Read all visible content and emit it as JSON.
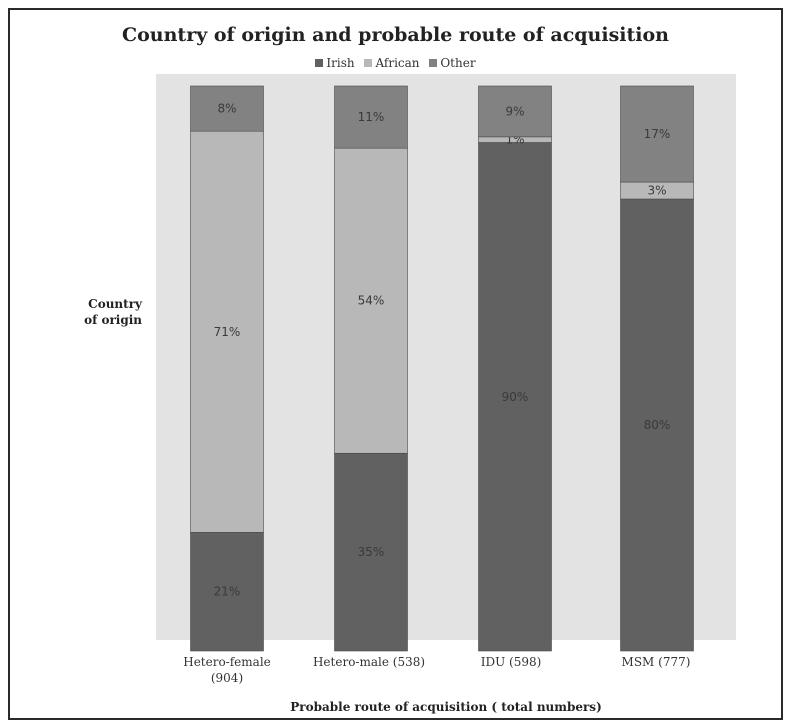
{
  "chart_data": {
    "type": "bar",
    "stacked": true,
    "percent_stacked": true,
    "title": "Country of origin and probable route of acquisition",
    "xlabel": "Probable route of acquisition ( total numbers)",
    "ylabel_lines": [
      "Country",
      "of origin"
    ],
    "categories": [
      [
        "Hetero-female",
        "(904)"
      ],
      [
        "Hetero-male (538)"
      ],
      [
        "IDU (598)"
      ],
      [
        "MSM (777)"
      ]
    ],
    "series": [
      {
        "name": "Irish",
        "color": "#616161",
        "values": [
          21,
          35,
          90,
          80
        ],
        "labels": [
          "21%",
          "35%",
          "90%",
          "80%"
        ]
      },
      {
        "name": "African",
        "color": "#b8b8b8",
        "values": [
          71,
          54,
          1,
          3
        ],
        "labels": [
          "71%",
          "54%",
          "1%",
          "3%"
        ]
      },
      {
        "name": "Other",
        "color": "#828282",
        "values": [
          8,
          11,
          9,
          17
        ],
        "labels": [
          "8%",
          "11%",
          "9%",
          "17%"
        ]
      }
    ],
    "ylim": [
      0,
      100
    ],
    "grid": false,
    "legend_position": "top"
  }
}
